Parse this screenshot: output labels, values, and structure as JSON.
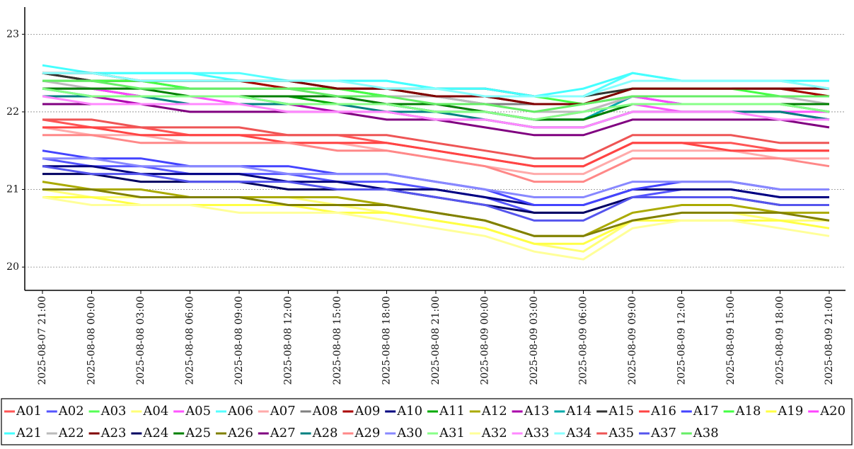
{
  "chart_data": {
    "type": "line",
    "categories": [
      "2025-08-07  21:00",
      "2025-08-08  00:00",
      "2025-08-08  03:00",
      "2025-08-08  06:00",
      "2025-08-08  09:00",
      "2025-08-08  12:00",
      "2025-08-08  15:00",
      "2025-08-08  18:00",
      "2025-08-08  21:00",
      "2025-08-09  00:00",
      "2025-08-09  03:00",
      "2025-08-09  06:00",
      "2025-08-09  09:00",
      "2025-08-09  12:00",
      "2025-08-09  15:00",
      "2025-08-09  18:00",
      "2025-08-09  21:00"
    ],
    "ylim": [
      19.7,
      23.35
    ],
    "yticks": [
      20,
      21,
      22,
      23
    ],
    "grid": true,
    "series": [
      {
        "name": "A01",
        "color": "#ff5555",
        "values": [
          21.9,
          21.8,
          21.8,
          21.7,
          21.7,
          21.7,
          21.7,
          21.6,
          21.5,
          21.4,
          21.3,
          21.3,
          21.6,
          21.6,
          21.6,
          21.5,
          21.5
        ]
      },
      {
        "name": "A02",
        "color": "#5555ff",
        "values": [
          21.4,
          21.3,
          21.3,
          21.2,
          21.2,
          21.2,
          21.1,
          21.1,
          21.0,
          20.9,
          20.7,
          20.7,
          20.9,
          21.0,
          21.0,
          20.9,
          20.9
        ]
      },
      {
        "name": "A03",
        "color": "#55ff55",
        "values": [
          22.5,
          22.4,
          22.4,
          22.4,
          22.4,
          22.3,
          22.3,
          22.3,
          22.2,
          22.2,
          22.2,
          22.2,
          22.3,
          22.3,
          22.3,
          22.3,
          22.2
        ]
      },
      {
        "name": "A04",
        "color": "#ffff77",
        "values": [
          21.0,
          20.9,
          20.9,
          20.9,
          20.9,
          20.9,
          20.8,
          20.7,
          20.6,
          20.5,
          20.3,
          20.2,
          20.6,
          20.7,
          20.7,
          20.6,
          20.6
        ]
      },
      {
        "name": "A05",
        "color": "#ff55ff",
        "values": [
          22.2,
          22.2,
          22.2,
          22.2,
          22.1,
          22.1,
          22.1,
          22.1,
          22.0,
          22.0,
          21.9,
          21.9,
          22.1,
          22.0,
          22.0,
          22.0,
          22.0
        ]
      },
      {
        "name": "A06",
        "color": "#55ffff",
        "values": [
          22.5,
          22.5,
          22.5,
          22.5,
          22.5,
          22.4,
          22.4,
          22.4,
          22.3,
          22.3,
          22.2,
          22.2,
          22.5,
          22.4,
          22.4,
          22.4,
          22.3
        ]
      },
      {
        "name": "A07",
        "color": "#ffaaaa",
        "values": [
          21.8,
          21.7,
          21.7,
          21.6,
          21.6,
          21.6,
          21.6,
          21.5,
          21.4,
          21.3,
          21.2,
          21.2,
          21.5,
          21.5,
          21.5,
          21.4,
          21.4
        ]
      },
      {
        "name": "A08",
        "color": "#808080",
        "values": [
          22.4,
          22.4,
          22.4,
          22.3,
          22.3,
          22.3,
          22.3,
          22.2,
          22.2,
          22.1,
          22.1,
          22.1,
          22.2,
          22.2,
          22.2,
          22.2,
          22.2
        ]
      },
      {
        "name": "A09",
        "color": "#aa0000",
        "values": [
          22.5,
          22.4,
          22.4,
          22.4,
          22.4,
          22.3,
          22.3,
          22.3,
          22.2,
          22.2,
          22.1,
          22.1,
          22.3,
          22.3,
          22.3,
          22.3,
          22.2
        ]
      },
      {
        "name": "A10",
        "color": "#000080",
        "values": [
          21.3,
          21.3,
          21.2,
          21.2,
          21.2,
          21.1,
          21.1,
          21.0,
          21.0,
          20.9,
          20.8,
          20.8,
          21.0,
          21.0,
          21.0,
          20.9,
          20.9
        ]
      },
      {
        "name": "A11",
        "color": "#00aa00",
        "values": [
          22.3,
          22.3,
          22.2,
          22.2,
          22.2,
          22.2,
          22.1,
          22.1,
          22.0,
          22.0,
          21.9,
          21.9,
          22.1,
          22.1,
          22.1,
          22.1,
          22.0
        ]
      },
      {
        "name": "A12",
        "color": "#aaaa00",
        "values": [
          21.1,
          21.0,
          21.0,
          20.9,
          20.9,
          20.9,
          20.9,
          20.8,
          20.7,
          20.6,
          20.4,
          20.4,
          20.7,
          20.8,
          20.8,
          20.7,
          20.7
        ]
      },
      {
        "name": "A13",
        "color": "#aa00aa",
        "values": [
          22.2,
          22.2,
          22.1,
          22.1,
          22.1,
          22.1,
          22.0,
          22.0,
          21.9,
          21.9,
          21.8,
          21.8,
          22.0,
          22.0,
          22.0,
          22.0,
          21.9
        ]
      },
      {
        "name": "A14",
        "color": "#00aaaa",
        "values": [
          22.3,
          22.2,
          22.2,
          22.2,
          22.2,
          22.1,
          22.1,
          22.1,
          22.0,
          22.0,
          21.9,
          21.9,
          22.2,
          22.1,
          22.1,
          22.1,
          22.1
        ]
      },
      {
        "name": "A15",
        "color": "#333333",
        "values": [
          22.5,
          22.4,
          22.4,
          22.4,
          22.4,
          22.4,
          22.3,
          22.3,
          22.3,
          22.3,
          22.2,
          22.2,
          22.3,
          22.3,
          22.3,
          22.3,
          22.3
        ]
      },
      {
        "name": "A16",
        "color": "#ff4444",
        "values": [
          21.8,
          21.8,
          21.7,
          21.7,
          21.7,
          21.6,
          21.6,
          21.6,
          21.5,
          21.4,
          21.3,
          21.3,
          21.6,
          21.6,
          21.5,
          21.5,
          21.5
        ]
      },
      {
        "name": "A17",
        "color": "#4444ff",
        "values": [
          21.5,
          21.4,
          21.4,
          21.3,
          21.3,
          21.3,
          21.2,
          21.2,
          21.1,
          21.0,
          20.8,
          20.8,
          21.0,
          21.1,
          21.1,
          21.0,
          21.0
        ]
      },
      {
        "name": "A18",
        "color": "#44ff44",
        "values": [
          22.4,
          22.4,
          22.4,
          22.3,
          22.3,
          22.3,
          22.3,
          22.2,
          22.2,
          22.2,
          22.2,
          22.1,
          22.3,
          22.3,
          22.3,
          22.2,
          22.2
        ]
      },
      {
        "name": "A19",
        "color": "#ffff44",
        "values": [
          20.9,
          20.9,
          20.8,
          20.8,
          20.8,
          20.8,
          20.7,
          20.7,
          20.6,
          20.5,
          20.3,
          20.3,
          20.6,
          20.6,
          20.6,
          20.6,
          20.5
        ]
      },
      {
        "name": "A20",
        "color": "#ff44ff",
        "values": [
          22.3,
          22.3,
          22.2,
          22.2,
          22.2,
          22.2,
          22.2,
          22.1,
          22.1,
          22.0,
          21.9,
          22.0,
          22.2,
          22.1,
          22.1,
          22.1,
          22.1
        ]
      },
      {
        "name": "A21",
        "color": "#44ffff",
        "values": [
          22.6,
          22.5,
          22.5,
          22.5,
          22.4,
          22.4,
          22.4,
          22.4,
          22.3,
          22.3,
          22.2,
          22.3,
          22.5,
          22.4,
          22.4,
          22.4,
          22.4
        ]
      },
      {
        "name": "A22",
        "color": "#bbbbbb",
        "values": [
          22.4,
          22.3,
          22.3,
          22.3,
          22.3,
          22.3,
          22.2,
          22.2,
          22.2,
          22.1,
          22.0,
          22.0,
          22.2,
          22.2,
          22.2,
          22.2,
          22.1
        ]
      },
      {
        "name": "A23",
        "color": "#800000",
        "values": [
          22.5,
          22.5,
          22.4,
          22.4,
          22.4,
          22.4,
          22.3,
          22.3,
          22.2,
          22.2,
          22.1,
          22.1,
          22.3,
          22.3,
          22.3,
          22.3,
          22.3
        ]
      },
      {
        "name": "A24",
        "color": "#000060",
        "values": [
          21.2,
          21.2,
          21.1,
          21.1,
          21.1,
          21.0,
          21.0,
          21.0,
          20.9,
          20.8,
          20.7,
          20.7,
          20.9,
          20.9,
          20.9,
          20.8,
          20.8
        ]
      },
      {
        "name": "A25",
        "color": "#008000",
        "values": [
          22.3,
          22.3,
          22.3,
          22.2,
          22.2,
          22.2,
          22.2,
          22.1,
          22.1,
          22.0,
          21.9,
          21.9,
          22.1,
          22.1,
          22.1,
          22.1,
          22.1
        ]
      },
      {
        "name": "A26",
        "color": "#808000",
        "values": [
          21.0,
          21.0,
          20.9,
          20.9,
          20.9,
          20.8,
          20.8,
          20.8,
          20.7,
          20.6,
          20.4,
          20.4,
          20.6,
          20.7,
          20.7,
          20.7,
          20.6
        ]
      },
      {
        "name": "A27",
        "color": "#800080",
        "values": [
          22.1,
          22.1,
          22.1,
          22.0,
          22.0,
          22.0,
          22.0,
          21.9,
          21.9,
          21.8,
          21.7,
          21.7,
          21.9,
          21.9,
          21.9,
          21.9,
          21.8
        ]
      },
      {
        "name": "A28",
        "color": "#008080",
        "values": [
          22.2,
          22.2,
          22.2,
          22.1,
          22.1,
          22.1,
          22.1,
          22.0,
          22.0,
          21.9,
          21.8,
          21.8,
          22.0,
          22.0,
          22.0,
          22.0,
          21.9
        ]
      },
      {
        "name": "A29",
        "color": "#ff8888",
        "values": [
          21.7,
          21.7,
          21.6,
          21.6,
          21.6,
          21.6,
          21.5,
          21.5,
          21.4,
          21.3,
          21.1,
          21.1,
          21.4,
          21.4,
          21.4,
          21.4,
          21.3
        ]
      },
      {
        "name": "A30",
        "color": "#8888ff",
        "values": [
          21.4,
          21.4,
          21.3,
          21.3,
          21.3,
          21.2,
          21.2,
          21.2,
          21.1,
          21.0,
          20.9,
          20.9,
          21.1,
          21.1,
          21.1,
          21.0,
          21.0
        ]
      },
      {
        "name": "A31",
        "color": "#88ff88",
        "values": [
          22.3,
          22.2,
          22.2,
          22.2,
          22.2,
          22.1,
          22.1,
          22.1,
          22.0,
          22.0,
          21.9,
          22.0,
          22.1,
          22.1,
          22.1,
          22.1,
          22.0
        ]
      },
      {
        "name": "A32",
        "color": "#ffff99",
        "values": [
          20.9,
          20.8,
          20.8,
          20.8,
          20.7,
          20.7,
          20.7,
          20.6,
          20.5,
          20.4,
          20.2,
          20.1,
          20.5,
          20.6,
          20.6,
          20.5,
          20.4
        ]
      },
      {
        "name": "A33",
        "color": "#ff88ff",
        "values": [
          22.2,
          22.1,
          22.1,
          22.1,
          22.1,
          22.0,
          22.0,
          22.0,
          21.9,
          21.9,
          21.8,
          21.8,
          22.0,
          22.0,
          22.0,
          21.9,
          21.9
        ]
      },
      {
        "name": "A34",
        "color": "#88ffff",
        "values": [
          22.5,
          22.5,
          22.4,
          22.4,
          22.4,
          22.4,
          22.4,
          22.3,
          22.3,
          22.2,
          22.2,
          22.2,
          22.4,
          22.4,
          22.4,
          22.4,
          22.3
        ]
      },
      {
        "name": "A35",
        "color": "#ee5555",
        "values": [
          21.9,
          21.9,
          21.8,
          21.8,
          21.8,
          21.7,
          21.7,
          21.7,
          21.6,
          21.5,
          21.4,
          21.4,
          21.7,
          21.7,
          21.7,
          21.6,
          21.6
        ]
      },
      {
        "name": "A37",
        "color": "#5555ee",
        "values": [
          21.3,
          21.2,
          21.2,
          21.1,
          21.1,
          21.1,
          21.0,
          21.0,
          20.9,
          20.8,
          20.6,
          20.6,
          20.9,
          20.9,
          20.9,
          20.8,
          20.8
        ]
      },
      {
        "name": "A38",
        "color": "#66ee66",
        "values": [
          22.4,
          22.4,
          22.3,
          22.3,
          22.3,
          22.3,
          22.2,
          22.2,
          22.1,
          22.1,
          22.0,
          22.1,
          22.2,
          22.2,
          22.2,
          22.2,
          22.2
        ]
      }
    ]
  }
}
